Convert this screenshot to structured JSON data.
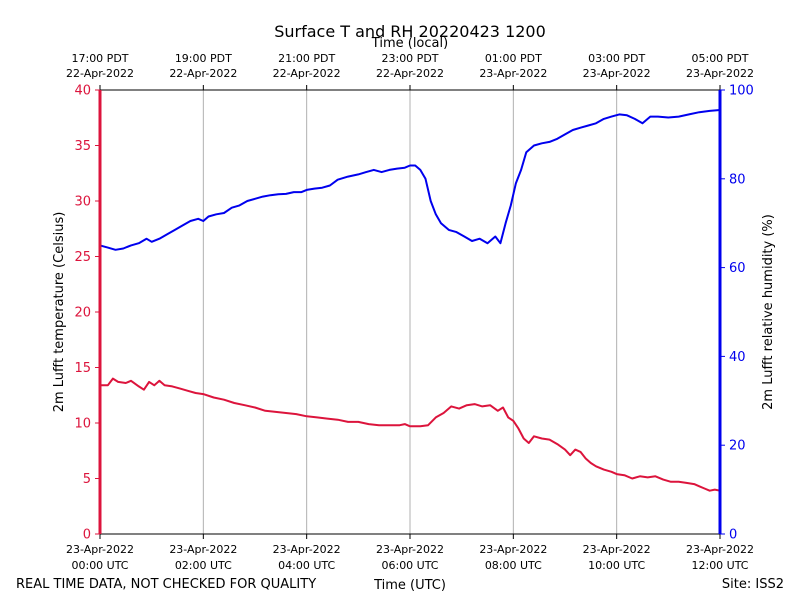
{
  "chart_data": {
    "type": "line",
    "title": "Surface T and RH 20220423 1200",
    "top_axis_label": "Time (local)",
    "xlabel": "Time (UTC)",
    "ylabel_left": "2m Lufft temperature (Celsius)",
    "ylabel_right": "2m Lufft relative humidity (%)",
    "footer_left": "REAL TIME DATA, NOT CHECKED FOR QUALITY",
    "footer_right": "Site: ISS2",
    "x_unit": "hours since 23-Apr-2022 00:00 UTC",
    "xlim": [
      0,
      12
    ],
    "ylim_left": [
      0,
      40
    ],
    "ylim_right": [
      0,
      100
    ],
    "grid": "vertical",
    "bottom_ticks": [
      {
        "x": 0,
        "line1": "23-Apr-2022",
        "line2": "00:00 UTC"
      },
      {
        "x": 2,
        "line1": "23-Apr-2022",
        "line2": "02:00 UTC"
      },
      {
        "x": 4,
        "line1": "23-Apr-2022",
        "line2": "04:00 UTC"
      },
      {
        "x": 6,
        "line1": "23-Apr-2022",
        "line2": "06:00 UTC"
      },
      {
        "x": 8,
        "line1": "23-Apr-2022",
        "line2": "08:00 UTC"
      },
      {
        "x": 10,
        "line1": "23-Apr-2022",
        "line2": "10:00 UTC"
      },
      {
        "x": 12,
        "line1": "23-Apr-2022",
        "line2": "12:00 UTC"
      }
    ],
    "top_ticks": [
      {
        "x": 0,
        "line1": "17:00 PDT",
        "line2": "22-Apr-2022"
      },
      {
        "x": 2,
        "line1": "19:00 PDT",
        "line2": "22-Apr-2022"
      },
      {
        "x": 4,
        "line1": "21:00 PDT",
        "line2": "22-Apr-2022"
      },
      {
        "x": 6,
        "line1": "23:00 PDT",
        "line2": "22-Apr-2022"
      },
      {
        "x": 8,
        "line1": "01:00 PDT",
        "line2": "23-Apr-2022"
      },
      {
        "x": 10,
        "line1": "03:00 PDT",
        "line2": "23-Apr-2022"
      },
      {
        "x": 12,
        "line1": "05:00 PDT",
        "line2": "23-Apr-2022"
      }
    ],
    "left_ticks": [
      "0",
      "5",
      "10",
      "15",
      "20",
      "25",
      "30",
      "35",
      "40"
    ],
    "right_ticks": [
      "0",
      "20",
      "40",
      "60",
      "80",
      "100"
    ],
    "colors": {
      "temperature": "#dc143c",
      "humidity": "#0000ee",
      "grid": "#b0b0b0"
    },
    "series": [
      {
        "name": "2m Lufft temperature",
        "axis": "left",
        "color": "#dc143c",
        "x": [
          0,
          0.15,
          0.25,
          0.35,
          0.5,
          0.6,
          0.75,
          0.85,
          0.95,
          1.05,
          1.15,
          1.25,
          1.4,
          1.55,
          1.7,
          1.85,
          2.0,
          2.2,
          2.4,
          2.6,
          2.8,
          3.0,
          3.2,
          3.4,
          3.6,
          3.8,
          4.0,
          4.2,
          4.4,
          4.6,
          4.8,
          5.0,
          5.2,
          5.4,
          5.6,
          5.8,
          5.9,
          6.0,
          6.2,
          6.35,
          6.5,
          6.65,
          6.8,
          6.95,
          7.1,
          7.25,
          7.4,
          7.55,
          7.7,
          7.8,
          7.9,
          8.0,
          8.1,
          8.2,
          8.3,
          8.4,
          8.55,
          8.7,
          8.85,
          9.0,
          9.1,
          9.2,
          9.3,
          9.4,
          9.5,
          9.6,
          9.75,
          9.9,
          10.0,
          10.15,
          10.3,
          10.45,
          10.6,
          10.75,
          10.9,
          11.05,
          11.2,
          11.35,
          11.5,
          11.6,
          11.7,
          11.8,
          11.9,
          12.0
        ],
        "values": [
          13.4,
          13.4,
          14.0,
          13.7,
          13.6,
          13.8,
          13.3,
          13.0,
          13.7,
          13.4,
          13.8,
          13.4,
          13.3,
          13.1,
          12.9,
          12.7,
          12.6,
          12.3,
          12.1,
          11.8,
          11.6,
          11.4,
          11.1,
          11.0,
          10.9,
          10.8,
          10.6,
          10.5,
          10.4,
          10.3,
          10.1,
          10.1,
          9.9,
          9.8,
          9.8,
          9.8,
          9.9,
          9.7,
          9.7,
          9.8,
          10.5,
          10.9,
          11.5,
          11.3,
          11.6,
          11.7,
          11.5,
          11.6,
          11.1,
          11.4,
          10.5,
          10.2,
          9.5,
          8.6,
          8.2,
          8.8,
          8.6,
          8.5,
          8.1,
          7.6,
          7.1,
          7.6,
          7.4,
          6.8,
          6.4,
          6.1,
          5.8,
          5.6,
          5.4,
          5.3,
          5.0,
          5.2,
          5.1,
          5.2,
          4.9,
          4.7,
          4.7,
          4.6,
          4.5,
          4.3,
          4.1,
          3.9,
          4.0,
          3.9
        ]
      },
      {
        "name": "2m Lufft relative humidity",
        "axis": "right",
        "color": "#0000ee",
        "x": [
          0,
          0.15,
          0.3,
          0.45,
          0.6,
          0.75,
          0.9,
          1.0,
          1.15,
          1.3,
          1.45,
          1.6,
          1.75,
          1.9,
          2.0,
          2.1,
          2.25,
          2.4,
          2.55,
          2.7,
          2.85,
          3.0,
          3.15,
          3.3,
          3.45,
          3.6,
          3.75,
          3.9,
          4.0,
          4.15,
          4.3,
          4.45,
          4.6,
          4.8,
          5.0,
          5.15,
          5.3,
          5.45,
          5.6,
          5.75,
          5.9,
          6.0,
          6.1,
          6.2,
          6.3,
          6.4,
          6.5,
          6.6,
          6.75,
          6.9,
          7.05,
          7.2,
          7.35,
          7.5,
          7.65,
          7.75,
          7.85,
          7.95,
          8.05,
          8.15,
          8.25,
          8.4,
          8.55,
          8.7,
          8.85,
          9.0,
          9.15,
          9.3,
          9.45,
          9.6,
          9.75,
          9.9,
          10.05,
          10.2,
          10.35,
          10.5,
          10.65,
          10.8,
          11.0,
          11.2,
          11.4,
          11.6,
          11.8,
          12.0
        ],
        "values": [
          65.0,
          64.5,
          64.0,
          64.3,
          65.0,
          65.5,
          66.5,
          65.8,
          66.5,
          67.5,
          68.5,
          69.5,
          70.5,
          71.0,
          70.5,
          71.5,
          72.0,
          72.3,
          73.5,
          74.0,
          75.0,
          75.5,
          76.0,
          76.3,
          76.5,
          76.6,
          77.0,
          77.0,
          77.5,
          77.8,
          78.0,
          78.5,
          79.8,
          80.5,
          81.0,
          81.5,
          82.0,
          81.5,
          82.0,
          82.3,
          82.5,
          83.0,
          83.0,
          82.0,
          80.0,
          75.0,
          72.0,
          70.0,
          68.5,
          68.0,
          67.0,
          66.0,
          66.5,
          65.5,
          67.0,
          65.5,
          70.0,
          74.0,
          79.0,
          82.0,
          86.0,
          87.5,
          88.0,
          88.3,
          89.0,
          90.0,
          91.0,
          91.5,
          92.0,
          92.5,
          93.5,
          94.0,
          94.5,
          94.3,
          93.5,
          92.5,
          94.0,
          94.0,
          93.8,
          94.0,
          94.5,
          95.0,
          95.3,
          95.5
        ]
      }
    ]
  }
}
